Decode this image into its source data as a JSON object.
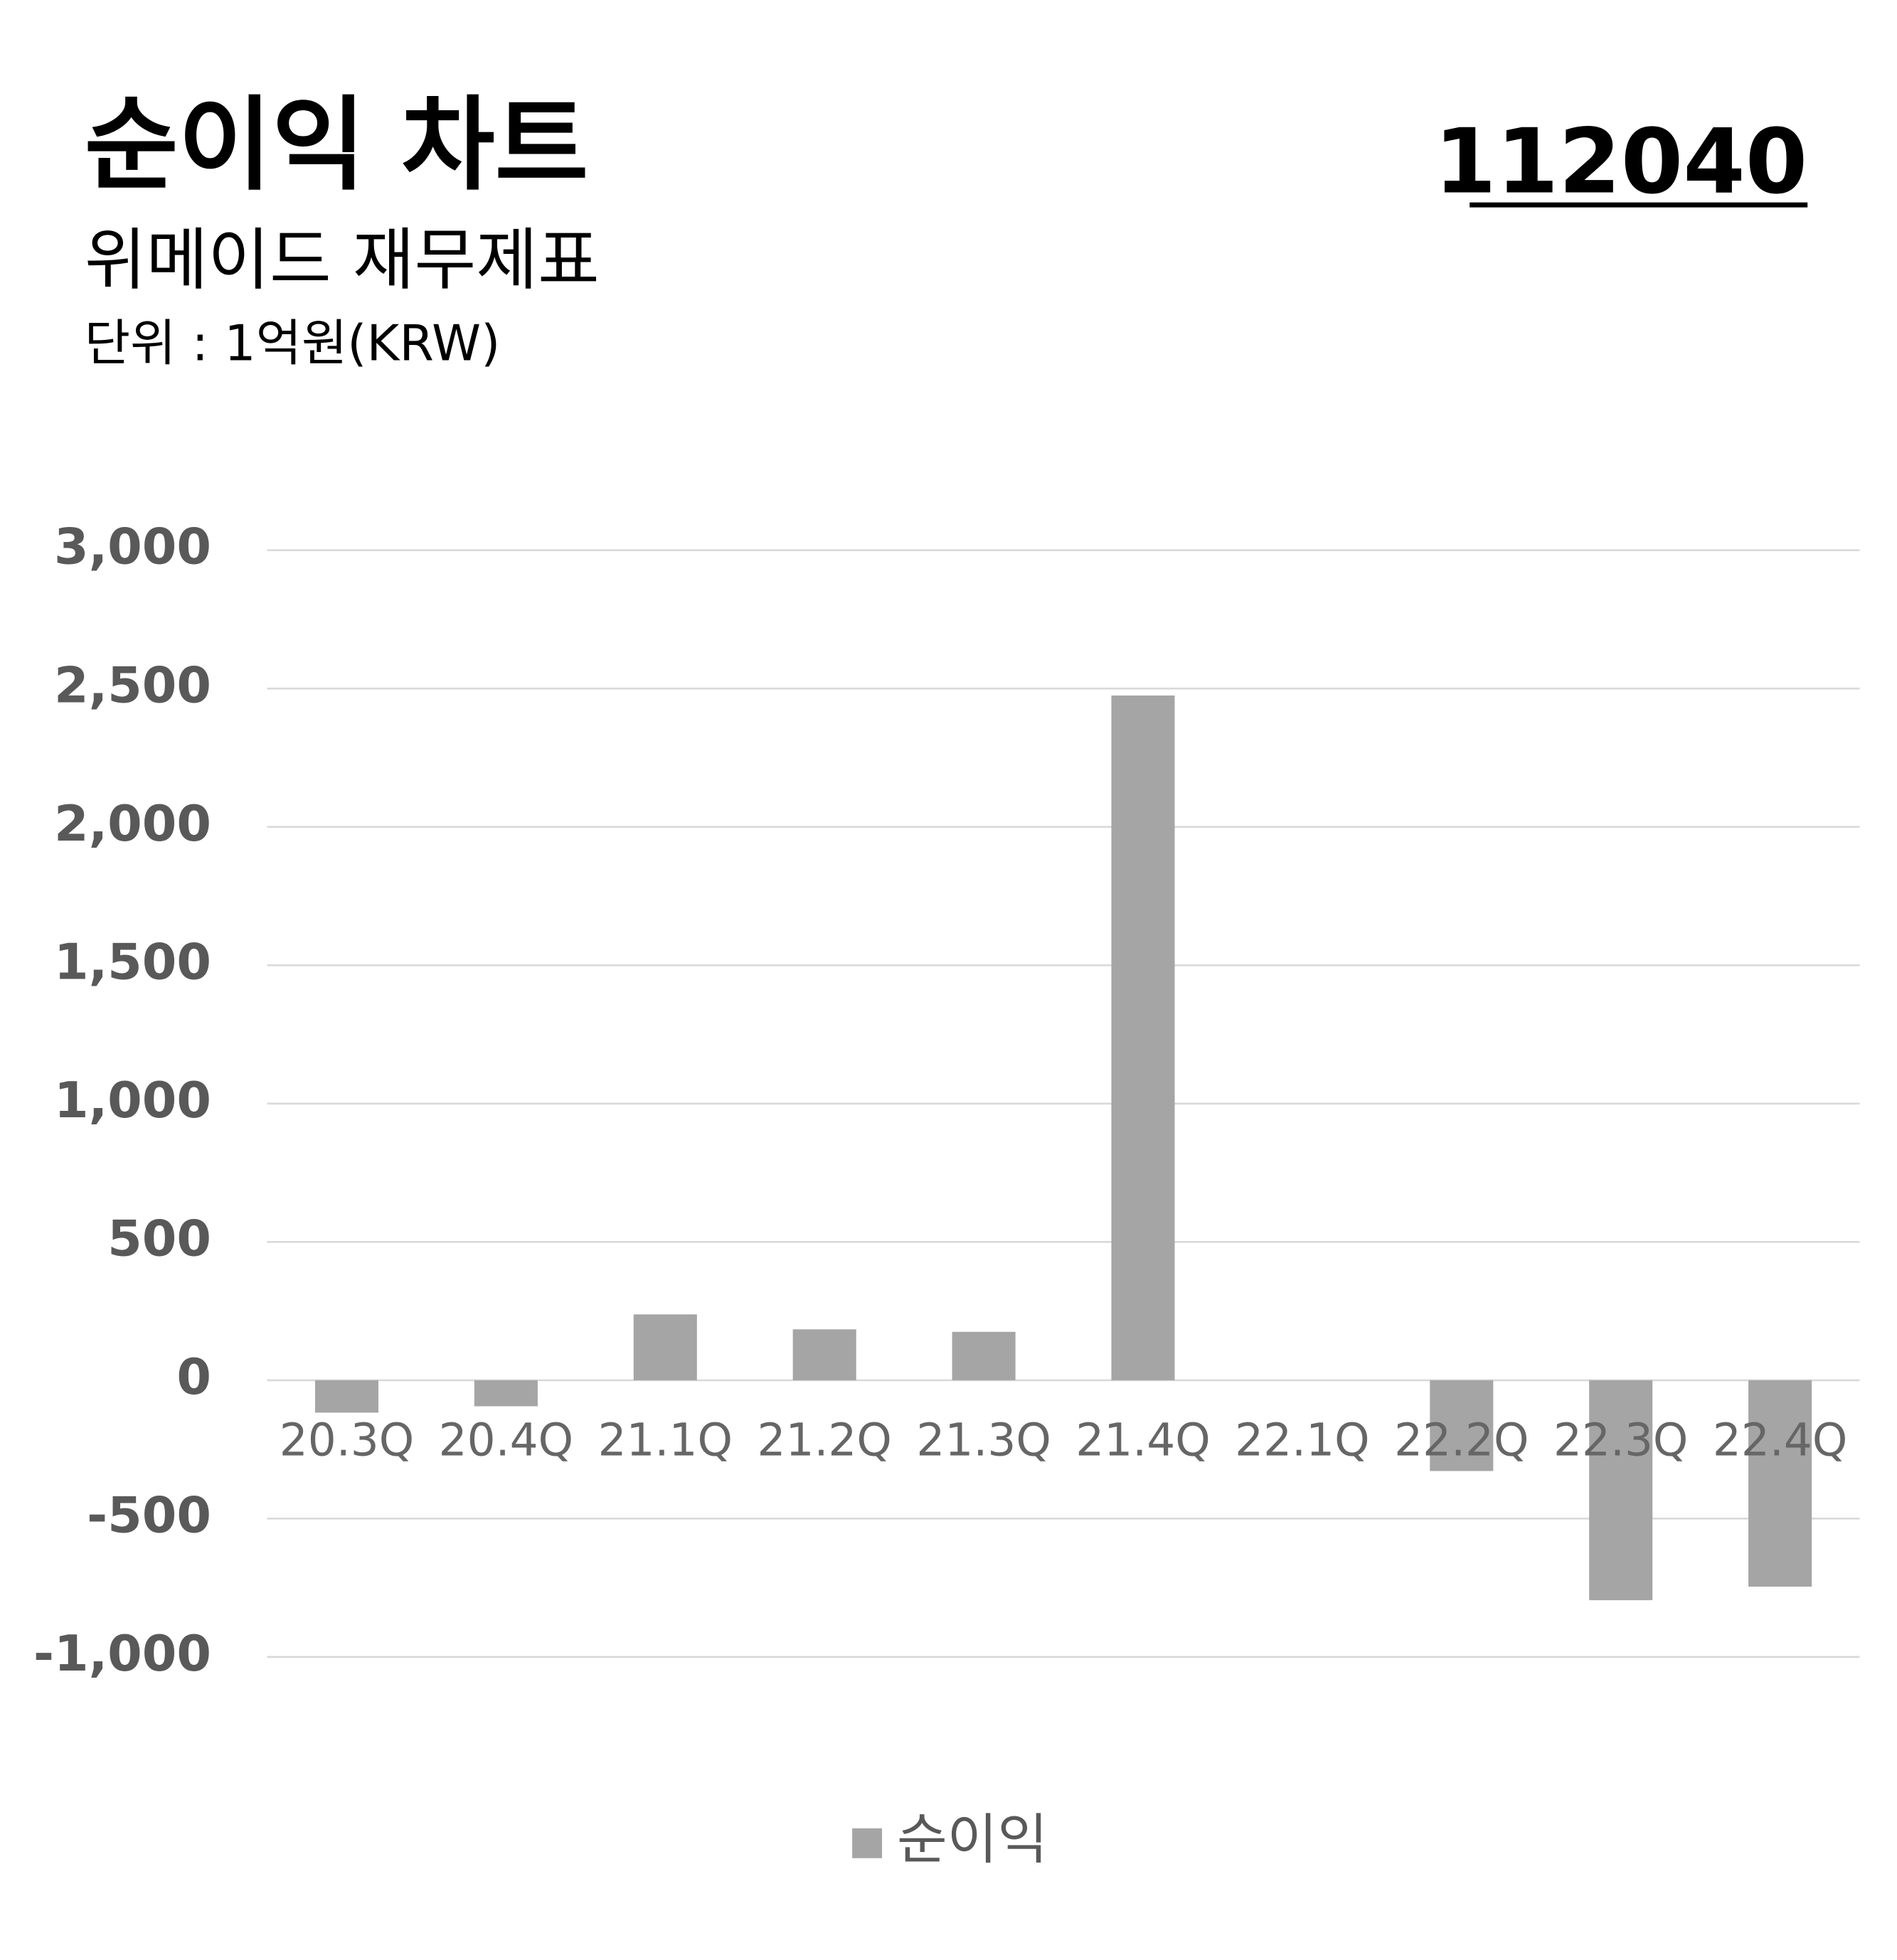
{
  "chart_data": {
    "type": "bar",
    "title": "순이익 차트",
    "ticker": "112040",
    "subtitle": "위메이드 재무제표",
    "unit": "단위 : 1억원(KRW)",
    "categories": [
      "20.3Q",
      "20.4Q",
      "21.1Q",
      "21.2Q",
      "21.3Q",
      "21.4Q",
      "22.1Q",
      "22.2Q",
      "22.3Q",
      "22.4Q"
    ],
    "series": [
      {
        "name": "순이익",
        "color": "#a5a5a5",
        "values": [
          -117,
          -94,
          238,
          184,
          175,
          2475,
          0,
          -328,
          -795,
          -746
        ]
      }
    ],
    "ylim": [
      -1000,
      3000
    ],
    "yticks": [
      {
        "value": -1000,
        "label": "-1,000"
      },
      -500,
      0,
      500,
      {
        "value": 1000,
        "label": "1,000"
      },
      {
        "value": 1500,
        "label": "1,500"
      },
      {
        "value": 2000,
        "label": "2,000"
      },
      {
        "value": 2500,
        "label": "2,500"
      },
      {
        "value": 3000,
        "label": "3,000"
      }
    ],
    "grid": true,
    "legend": "bottom"
  }
}
